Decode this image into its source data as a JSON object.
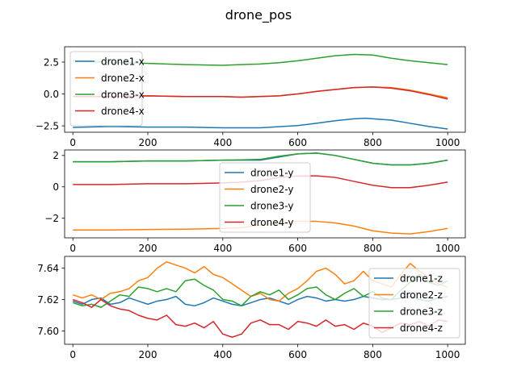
{
  "chart_data": {
    "title": "drone_pos",
    "colors": [
      "#1f77b4",
      "#ff7f0e",
      "#2ca02c",
      "#d62728"
    ],
    "subplots": [
      {
        "type": "line",
        "xlim": [
          -22,
          1047
        ],
        "ylim": [
          -3.0,
          3.7
        ],
        "xticks": [
          {
            "v": 0,
            "label": "0"
          },
          {
            "v": 200,
            "label": "200"
          },
          {
            "v": 400,
            "label": "400"
          },
          {
            "v": 600,
            "label": "600"
          },
          {
            "v": 800,
            "label": "800"
          },
          {
            "v": 1000,
            "label": "1000"
          }
        ],
        "yticks": [
          {
            "v": -2.5,
            "label": "−2.5"
          },
          {
            "v": 0.0,
            "label": "0.0"
          },
          {
            "v": 2.5,
            "label": "2.5"
          }
        ],
        "legend": "upper-left",
        "series": [
          {
            "name": "drone1-x",
            "x": [
              0,
              100,
              200,
              300,
              400,
              500,
              600,
              650,
              700,
              750,
              780,
              850,
              900,
              950,
              1000
            ],
            "y": [
              -2.62,
              -2.55,
              -2.6,
              -2.6,
              -2.65,
              -2.65,
              -2.48,
              -2.3,
              -2.1,
              -1.95,
              -1.9,
              -2.05,
              -2.3,
              -2.55,
              -2.75
            ]
          },
          {
            "name": "drone2-x",
            "x": [
              0,
              100,
              200,
              300,
              400,
              450,
              550,
              600,
              650,
              700,
              750,
              800,
              850,
              900,
              950,
              1000
            ],
            "y": [
              -0.2,
              -0.2,
              -0.15,
              -0.2,
              -0.2,
              -0.25,
              -0.15,
              0.0,
              0.2,
              0.35,
              0.5,
              0.55,
              0.5,
              0.3,
              0.0,
              -0.3
            ]
          },
          {
            "name": "drone3-x",
            "x": [
              0,
              100,
              200,
              300,
              400,
              450,
              500,
              550,
              600,
              650,
              700,
              750,
              800,
              850,
              900,
              950,
              1000
            ],
            "y": [
              2.6,
              2.5,
              2.4,
              2.3,
              2.25,
              2.3,
              2.35,
              2.45,
              2.6,
              2.8,
              3.0,
              3.1,
              3.05,
              2.8,
              2.6,
              2.45,
              2.3
            ]
          },
          {
            "name": "drone4-x",
            "x": [
              0,
              100,
              200,
              300,
              400,
              450,
              550,
              600,
              650,
              700,
              750,
              800,
              850,
              900,
              950,
              1000
            ],
            "y": [
              -0.2,
              -0.2,
              -0.15,
              -0.2,
              -0.2,
              -0.25,
              -0.15,
              0.0,
              0.2,
              0.35,
              0.5,
              0.55,
              0.45,
              0.25,
              -0.05,
              -0.4
            ]
          }
        ]
      },
      {
        "type": "line",
        "xlim": [
          -22,
          1047
        ],
        "ylim": [
          -3.25,
          2.35
        ],
        "xticks": [
          {
            "v": 0,
            "label": "0"
          },
          {
            "v": 200,
            "label": "200"
          },
          {
            "v": 400,
            "label": "400"
          },
          {
            "v": 600,
            "label": "600"
          },
          {
            "v": 800,
            "label": "800"
          },
          {
            "v": 1000,
            "label": "1000"
          }
        ],
        "yticks": [
          {
            "v": -2,
            "label": "−2"
          },
          {
            "v": 0,
            "label": "0"
          },
          {
            "v": 2,
            "label": "2"
          }
        ],
        "legend": "center",
        "series": [
          {
            "name": "drone1-y",
            "x": [
              0,
              100,
              200,
              300,
              400,
              450,
              500,
              550,
              600,
              650,
              700,
              750,
              800,
              850,
              900,
              950,
              1000
            ],
            "y": [
              1.6,
              1.6,
              1.65,
              1.65,
              1.7,
              1.7,
              1.7,
              1.9,
              2.1,
              2.15,
              2.0,
              1.75,
              1.5,
              1.4,
              1.4,
              1.5,
              1.7
            ]
          },
          {
            "name": "drone2-y",
            "x": [
              0,
              100,
              200,
              300,
              400,
              450,
              500,
              550,
              600,
              650,
              700,
              750,
              800,
              850,
              900,
              950,
              1000
            ],
            "y": [
              -2.75,
              -2.75,
              -2.72,
              -2.7,
              -2.65,
              -2.6,
              -2.45,
              -2.3,
              -2.2,
              -2.2,
              -2.3,
              -2.5,
              -2.8,
              -2.95,
              -3.0,
              -2.85,
              -2.65
            ]
          },
          {
            "name": "drone3-y",
            "x": [
              0,
              100,
              200,
              300,
              400,
              450,
              500,
              550,
              600,
              650,
              700,
              750,
              800,
              850,
              900,
              950,
              1000
            ],
            "y": [
              1.6,
              1.6,
              1.65,
              1.65,
              1.7,
              1.72,
              1.75,
              1.95,
              2.1,
              2.15,
              2.0,
              1.75,
              1.5,
              1.4,
              1.4,
              1.5,
              1.7
            ]
          },
          {
            "name": "drone4-y",
            "x": [
              0,
              100,
              200,
              300,
              400,
              450,
              500,
              550,
              600,
              650,
              700,
              750,
              800,
              850,
              900,
              950,
              1000
            ],
            "y": [
              0.15,
              0.15,
              0.2,
              0.2,
              0.25,
              0.3,
              0.4,
              0.6,
              0.7,
              0.7,
              0.6,
              0.35,
              0.1,
              -0.05,
              -0.05,
              0.1,
              0.3
            ]
          }
        ]
      },
      {
        "type": "line",
        "xlim": [
          -22,
          1047
        ],
        "ylim": [
          7.5915,
          7.6475
        ],
        "xticks": [
          {
            "v": 0,
            "label": "0"
          },
          {
            "v": 200,
            "label": "200"
          },
          {
            "v": 400,
            "label": "400"
          },
          {
            "v": 600,
            "label": "600"
          },
          {
            "v": 800,
            "label": "800"
          },
          {
            "v": 1000,
            "label": "1000"
          }
        ],
        "yticks": [
          {
            "v": 7.6,
            "label": "7.60"
          },
          {
            "v": 7.62,
            "label": "7.62"
          },
          {
            "v": 7.64,
            "label": "7.64"
          }
        ],
        "legend": "right",
        "series": [
          {
            "name": "drone1-z",
            "x": [
              0,
              25,
              50,
              75,
              100,
              125,
              150,
              175,
              200,
              225,
              250,
              275,
              300,
              325,
              350,
              375,
              400,
              425,
              450,
              475,
              500,
              525,
              550,
              575,
              600,
              625,
              650,
              675,
              700,
              725,
              750,
              775,
              800,
              825,
              850,
              875,
              900,
              925,
              950,
              975,
              1000
            ],
            "y": [
              7.619,
              7.617,
              7.62,
              7.621,
              7.617,
              7.618,
              7.621,
              7.619,
              7.617,
              7.619,
              7.62,
              7.622,
              7.617,
              7.616,
              7.618,
              7.621,
              7.619,
              7.617,
              7.616,
              7.618,
              7.62,
              7.621,
              7.619,
              7.617,
              7.62,
              7.622,
              7.621,
              7.619,
              7.62,
              7.619,
              7.62,
              7.622,
              7.621,
              7.62,
              7.62,
              7.621,
              7.622,
              7.62,
              7.619,
              7.621,
              7.622
            ]
          },
          {
            "name": "drone2-z",
            "x": [
              0,
              25,
              50,
              75,
              100,
              125,
              150,
              175,
              200,
              225,
              250,
              275,
              300,
              325,
              350,
              375,
              400,
              425,
              450,
              475,
              500,
              525,
              550,
              575,
              600,
              625,
              650,
              675,
              700,
              725,
              750,
              775,
              800,
              825,
              850,
              875,
              900,
              925,
              950,
              975,
              1000
            ],
            "y": [
              7.623,
              7.621,
              7.623,
              7.62,
              7.624,
              7.625,
              7.627,
              7.632,
              7.634,
              7.64,
              7.644,
              7.642,
              7.64,
              7.637,
              7.641,
              7.636,
              7.634,
              7.63,
              7.626,
              7.622,
              7.624,
              7.62,
              7.619,
              7.624,
              7.627,
              7.632,
              7.638,
              7.64,
              7.636,
              7.63,
              7.632,
              7.638,
              7.632,
              7.63,
              7.628,
              7.636,
              7.643,
              7.638,
              7.634,
              7.63,
              7.628
            ]
          },
          {
            "name": "drone3-z",
            "x": [
              0,
              25,
              50,
              75,
              100,
              125,
              150,
              175,
              200,
              225,
              250,
              275,
              300,
              325,
              350,
              375,
              400,
              425,
              450,
              475,
              500,
              525,
              550,
              575,
              600,
              625,
              650,
              675,
              700,
              725,
              750,
              775,
              800,
              825,
              850,
              875,
              900,
              925,
              950,
              975,
              1000
            ],
            "y": [
              7.618,
              7.616,
              7.617,
              7.615,
              7.619,
              7.623,
              7.622,
              7.628,
              7.627,
              7.625,
              7.627,
              7.625,
              7.632,
              7.633,
              7.629,
              7.626,
              7.62,
              7.619,
              7.616,
              7.622,
              7.625,
              7.623,
              7.626,
              7.62,
              7.623,
              7.627,
              7.628,
              7.623,
              7.62,
              7.624,
              7.627,
              7.622,
              7.625,
              7.621,
              7.62,
              7.626,
              7.631,
              7.636,
              7.631,
              7.629,
              7.632
            ]
          },
          {
            "name": "drone4-z",
            "x": [
              0,
              25,
              50,
              75,
              100,
              125,
              150,
              175,
              200,
              225,
              250,
              275,
              300,
              325,
              350,
              375,
              400,
              425,
              450,
              475,
              500,
              525,
              550,
              575,
              600,
              625,
              650,
              675,
              700,
              725,
              750,
              775,
              800,
              825,
              850,
              875,
              900,
              925,
              950,
              975,
              1000
            ],
            "y": [
              7.62,
              7.618,
              7.615,
              7.62,
              7.616,
              7.614,
              7.613,
              7.61,
              7.608,
              7.607,
              7.61,
              7.604,
              7.603,
              7.605,
              7.602,
              7.606,
              7.598,
              7.596,
              7.598,
              7.605,
              7.607,
              7.604,
              7.604,
              7.601,
              7.606,
              7.605,
              7.603,
              7.607,
              7.603,
              7.604,
              7.601,
              7.605,
              7.603,
              7.599,
              7.602,
              7.605,
              7.604,
              7.606,
              7.603,
              7.607,
              7.606
            ]
          }
        ]
      }
    ]
  }
}
